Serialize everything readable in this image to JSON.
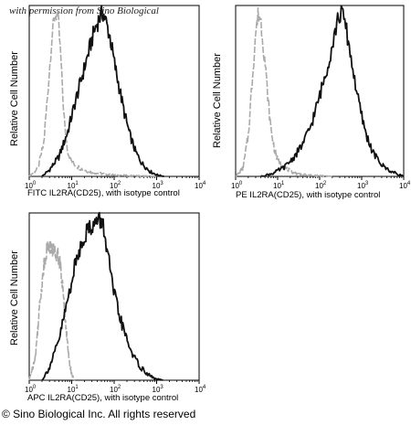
{
  "watermark": "with permission from Sino Biological",
  "copyright": "© Sino Biological Inc. All rights reserved",
  "chart_data": [
    {
      "type": "line",
      "xscale": "log",
      "xlim": [
        1,
        10000
      ],
      "xticks": [
        "10^0",
        "10^1",
        "10^2",
        "10^3",
        "10^4"
      ],
      "ylabel": "Relative Cell Number",
      "xlabel": "FITC IL2RA(CD25), with isotype control",
      "series": [
        {
          "color": "#aaaaaa",
          "style": "dashed",
          "x": [
            1,
            1.6,
            2.2,
            2.8,
            3.4,
            4.0,
            4.5,
            5.0,
            5.6,
            6.3,
            7.0,
            8.0,
            9.5,
            12,
            16,
            25,
            40,
            80,
            200,
            1000
          ],
          "y": [
            0,
            0.05,
            0.2,
            0.55,
            0.85,
            0.98,
            1.0,
            0.9,
            0.7,
            0.45,
            0.28,
            0.16,
            0.1,
            0.07,
            0.05,
            0.03,
            0.02,
            0.01,
            0.005,
            0
          ]
        },
        {
          "color": "#111111",
          "style": "solid",
          "x": [
            2,
            3,
            5,
            8,
            12,
            18,
            25,
            35,
            45,
            55,
            65,
            80,
            100,
            130,
            170,
            230,
            320,
            450,
            700,
            1000,
            1500
          ],
          "y": [
            0,
            0.04,
            0.12,
            0.27,
            0.45,
            0.62,
            0.76,
            0.9,
            0.97,
            1.0,
            0.94,
            0.85,
            0.7,
            0.55,
            0.4,
            0.26,
            0.15,
            0.08,
            0.03,
            0.01,
            0
          ]
        }
      ]
    },
    {
      "type": "line",
      "xscale": "log",
      "xlim": [
        1,
        10000
      ],
      "xticks": [
        "10^0",
        "10^1",
        "10^2",
        "10^3",
        "10^4"
      ],
      "ylabel": "Relative Cell Number",
      "xlabel": "PE IL2RA(CD25), with isotype control",
      "series": [
        {
          "color": "#aaaaaa",
          "style": "dashed",
          "x": [
            1,
            1.5,
            2.0,
            2.5,
            3.0,
            3.5,
            4.0,
            5.0,
            6.0,
            7.0,
            8.5,
            10,
            13,
            18,
            25,
            40,
            80,
            200
          ],
          "y": [
            0,
            0.05,
            0.25,
            0.6,
            0.88,
            1.0,
            0.95,
            0.7,
            0.45,
            0.28,
            0.16,
            0.1,
            0.06,
            0.04,
            0.02,
            0.01,
            0.005,
            0
          ]
        },
        {
          "color": "#111111",
          "style": "solid",
          "x": [
            4,
            8,
            15,
            25,
            40,
            60,
            90,
            130,
            180,
            230,
            280,
            330,
            400,
            500,
            650,
            850,
            1200,
            1800,
            3000,
            5000,
            8000,
            10000
          ],
          "y": [
            0,
            0.02,
            0.06,
            0.12,
            0.2,
            0.3,
            0.45,
            0.6,
            0.75,
            0.88,
            0.97,
            1.0,
            0.94,
            0.8,
            0.62,
            0.45,
            0.28,
            0.15,
            0.07,
            0.03,
            0.01,
            0
          ]
        }
      ]
    },
    {
      "type": "line",
      "xscale": "log",
      "xlim": [
        1,
        10000
      ],
      "xticks": [
        "10^0",
        "10^1",
        "10^2",
        "10^3",
        "10^4"
      ],
      "ylabel": "Relative Cell Number",
      "xlabel": "APC IL2RA(CD25), with isotype control",
      "series": [
        {
          "color": "#aaaaaa",
          "style": "dashed",
          "x": [
            1,
            1.4,
            1.8,
            2.3,
            2.8,
            3.3,
            4.0,
            4.6,
            5.2,
            6.0,
            7.0,
            8.0,
            9.0,
            10,
            11,
            12
          ],
          "y": [
            0,
            0.15,
            0.5,
            0.75,
            0.85,
            0.82,
            0.8,
            0.8,
            0.75,
            0.6,
            0.4,
            0.22,
            0.1,
            0.04,
            0.01,
            0
          ]
        },
        {
          "color": "#111111",
          "style": "solid",
          "x": [
            2,
            3,
            5,
            8,
            12,
            18,
            25,
            35,
            45,
            55,
            70,
            90,
            120,
            160,
            220,
            300,
            420,
            600,
            900,
            1400
          ],
          "y": [
            0,
            0.08,
            0.25,
            0.5,
            0.72,
            0.88,
            0.95,
            0.98,
            1.0,
            0.97,
            0.8,
            0.6,
            0.45,
            0.33,
            0.22,
            0.14,
            0.08,
            0.04,
            0.01,
            0
          ]
        }
      ]
    }
  ]
}
